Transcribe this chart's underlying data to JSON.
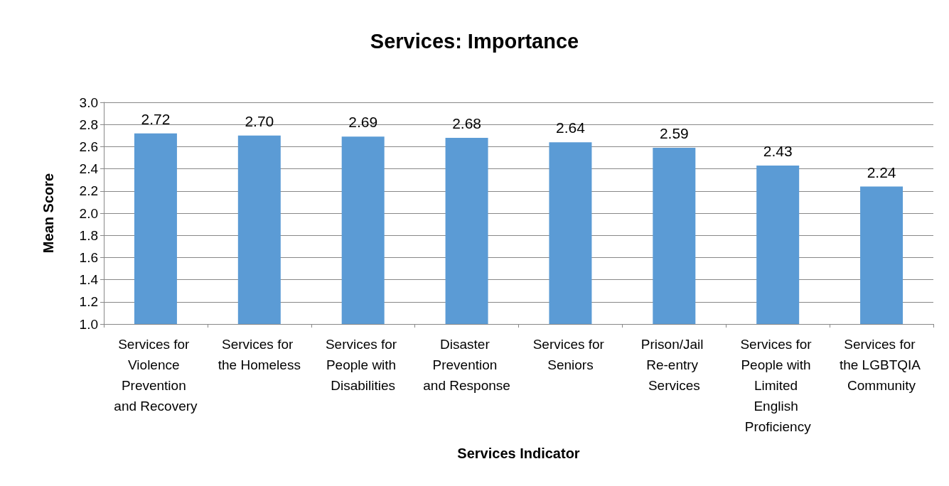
{
  "chart_data": {
    "type": "bar",
    "title": "Services: Importance",
    "xlabel": "Services Indicator",
    "ylabel": "Mean Score",
    "categories": [
      "Services for Violence Prevention and Recovery",
      "Services for the Homeless",
      "Services for People with Disabilities",
      "Disaster Prevention and Response",
      "Services for Seniors",
      "Prison/Jail Re-entry Services",
      "Services for People with Limited English Proficiency",
      "Services for the LGBTQIA Community"
    ],
    "values": [
      2.72,
      2.7,
      2.69,
      2.68,
      2.64,
      2.59,
      2.43,
      2.24
    ],
    "value_labels": [
      "2.72",
      "2.70",
      "2.69",
      "2.68",
      "2.64",
      "2.59",
      "2.43",
      "2.24"
    ],
    "color": "#5b9bd5",
    "ylim": [
      1.0,
      3.0
    ],
    "yticks": [
      {
        "value": 1.0,
        "label": "1.0"
      },
      {
        "value": 1.2,
        "label": "1.2"
      },
      {
        "value": 1.4,
        "label": "1.4"
      },
      {
        "value": 1.6,
        "label": "1.6"
      },
      {
        "value": 1.8,
        "label": "1.8"
      },
      {
        "value": 2.0,
        "label": "2.0"
      },
      {
        "value": 2.2,
        "label": "2.2"
      },
      {
        "value": 2.4,
        "label": "2.4"
      },
      {
        "value": 2.6,
        "label": "2.6"
      },
      {
        "value": 2.8,
        "label": "2.8"
      },
      {
        "value": 3.0,
        "label": "3.0"
      }
    ],
    "grid": "y"
  }
}
